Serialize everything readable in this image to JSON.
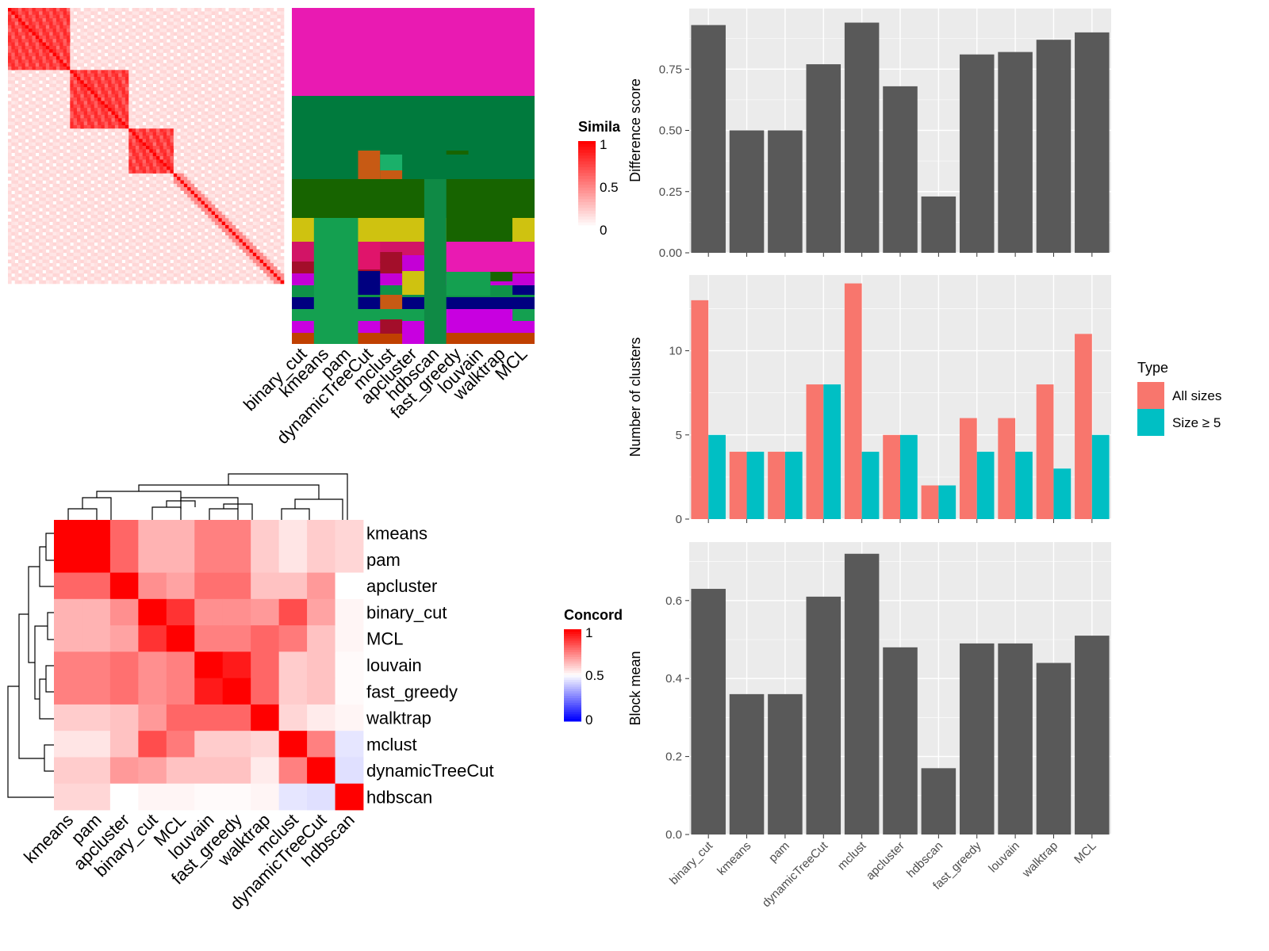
{
  "methods_order": [
    "binary_cut",
    "kmeans",
    "pam",
    "dynamicTreeCut",
    "mclust",
    "apcluster",
    "hdbscan",
    "fast_greedy",
    "louvain",
    "walktrap",
    "MCL"
  ],
  "heatmap_similarity": {
    "legend_title": "Simila",
    "legend_ticks": [
      "1",
      "0.5",
      "0"
    ],
    "column_labels": [
      "binary_cut",
      "kmeans",
      "pam",
      "dynamicTreeCut",
      "mclust",
      "apcluster",
      "hdbscan",
      "fast_greedy",
      "louvain",
      "walktrap",
      "MCL"
    ]
  },
  "heatmap_concordance": {
    "legend_title": "Concord",
    "legend_ticks": [
      "1",
      "0.5",
      "0"
    ],
    "row_labels": [
      "kmeans",
      "pam",
      "apcluster",
      "binary_cut",
      "MCL",
      "louvain",
      "fast_greedy",
      "walktrap",
      "mclust",
      "dynamicTreeCut",
      "hdbscan"
    ],
    "col_labels": [
      "kmeans",
      "pam",
      "apcluster",
      "binary_cut",
      "MCL",
      "louvain",
      "fast_greedy",
      "walktrap",
      "mclust",
      "dynamicTreeCut",
      "hdbscan"
    ],
    "matrix": [
      [
        1.0,
        1.0,
        0.8,
        0.65,
        0.65,
        0.75,
        0.75,
        0.6,
        0.55,
        0.6,
        0.58
      ],
      [
        1.0,
        1.0,
        0.8,
        0.65,
        0.65,
        0.75,
        0.75,
        0.6,
        0.55,
        0.6,
        0.58
      ],
      [
        0.8,
        0.8,
        1.0,
        0.72,
        0.68,
        0.78,
        0.78,
        0.62,
        0.62,
        0.7,
        0.5
      ],
      [
        0.65,
        0.65,
        0.72,
        1.0,
        0.9,
        0.72,
        0.72,
        0.7,
        0.85,
        0.68,
        0.52
      ],
      [
        0.65,
        0.65,
        0.68,
        0.9,
        1.0,
        0.75,
        0.75,
        0.8,
        0.76,
        0.62,
        0.52
      ],
      [
        0.75,
        0.75,
        0.78,
        0.72,
        0.75,
        1.0,
        0.95,
        0.8,
        0.6,
        0.62,
        0.51
      ],
      [
        0.75,
        0.75,
        0.78,
        0.72,
        0.75,
        0.95,
        1.0,
        0.8,
        0.6,
        0.62,
        0.51
      ],
      [
        0.6,
        0.6,
        0.62,
        0.7,
        0.8,
        0.8,
        0.8,
        1.0,
        0.58,
        0.54,
        0.52
      ],
      [
        0.55,
        0.55,
        0.62,
        0.85,
        0.76,
        0.6,
        0.6,
        0.58,
        1.0,
        0.75,
        0.45
      ],
      [
        0.6,
        0.6,
        0.7,
        0.68,
        0.62,
        0.62,
        0.62,
        0.54,
        0.75,
        1.0,
        0.44
      ],
      [
        0.58,
        0.58,
        0.5,
        0.52,
        0.52,
        0.51,
        0.51,
        0.52,
        0.45,
        0.44,
        1.0
      ]
    ]
  },
  "chart_data": [
    {
      "type": "bar",
      "categories": [
        "binary_cut",
        "kmeans",
        "pam",
        "dynamicTreeCut",
        "mclust",
        "apcluster",
        "hdbscan",
        "fast_greedy",
        "louvain",
        "walktrap",
        "MCL"
      ],
      "values": [
        0.93,
        0.5,
        0.5,
        0.77,
        0.94,
        0.68,
        0.23,
        0.81,
        0.82,
        0.87,
        0.9
      ],
      "ylabel": "Difference score",
      "ylim": [
        0,
        1.0
      ],
      "yticks": [
        "0.00",
        "0.25",
        "0.50",
        "0.75"
      ],
      "color": "#595959",
      "grid": true
    },
    {
      "type": "bar",
      "categories": [
        "binary_cut",
        "kmeans",
        "pam",
        "dynamicTreeCut",
        "mclust",
        "apcluster",
        "hdbscan",
        "fast_greedy",
        "louvain",
        "walktrap",
        "MCL"
      ],
      "series": [
        {
          "name": "All sizes",
          "values": [
            13,
            4,
            4,
            8,
            14,
            5,
            2,
            6,
            6,
            8,
            11
          ],
          "color": "#F8766D"
        },
        {
          "name": "Size ≥ 5",
          "values": [
            5,
            4,
            4,
            8,
            4,
            5,
            2,
            4,
            4,
            3,
            5
          ],
          "color": "#00BFC4"
        }
      ],
      "ylabel": "Number of clusters",
      "ylim": [
        0,
        14.5
      ],
      "yticks": [
        "0",
        "5",
        "10"
      ],
      "legend_title": "Type",
      "legend_position": "right",
      "grid": true
    },
    {
      "type": "bar",
      "categories": [
        "binary_cut",
        "kmeans",
        "pam",
        "dynamicTreeCut",
        "mclust",
        "apcluster",
        "hdbscan",
        "fast_greedy",
        "louvain",
        "walktrap",
        "MCL"
      ],
      "values": [
        0.63,
        0.36,
        0.36,
        0.61,
        0.72,
        0.48,
        0.17,
        0.49,
        0.49,
        0.44,
        0.51
      ],
      "ylabel": "Block mean",
      "ylim": [
        0,
        0.75
      ],
      "yticks": [
        "0.0",
        "0.2",
        "0.4",
        "0.6"
      ],
      "color": "#595959",
      "grid": true
    }
  ]
}
